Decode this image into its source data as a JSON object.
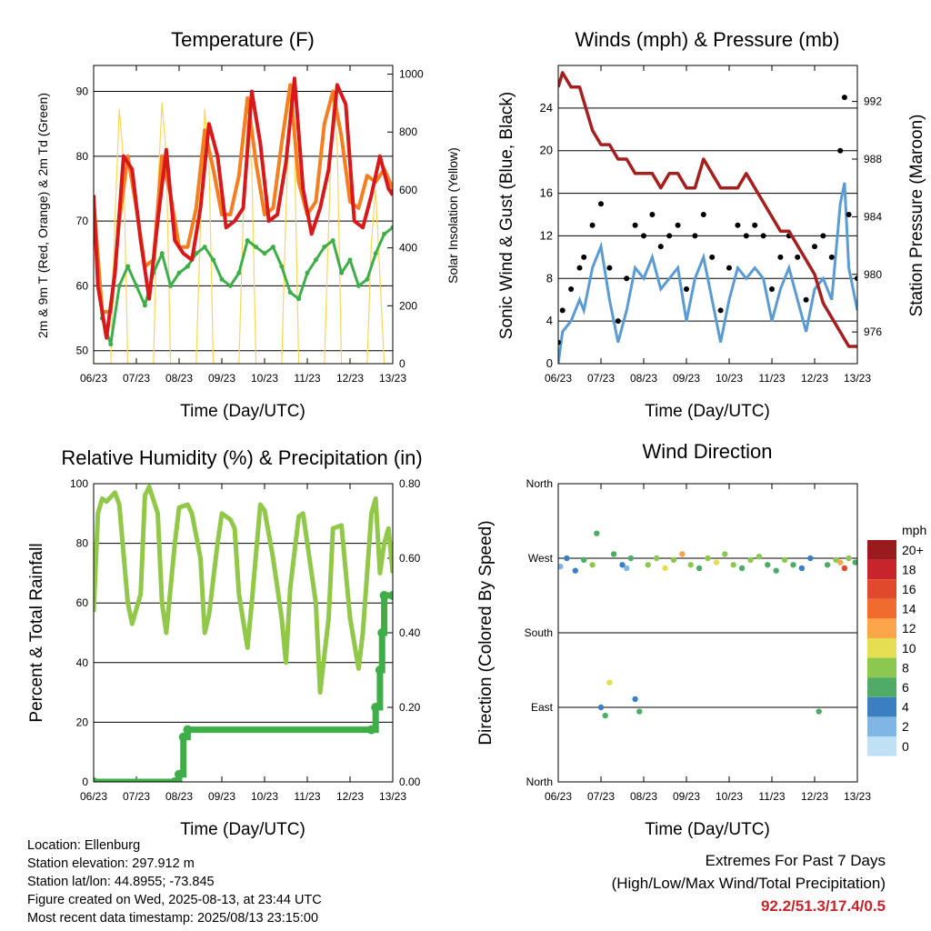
{
  "colors": {
    "t2m": "#d7191c",
    "t9m": "#f57f20",
    "td": "#3fae49",
    "solar": "#fcd65a",
    "wind": "#5a9bd4",
    "gust": "#000000",
    "pressure": "#a51f1f",
    "rh": "#92c84a",
    "precip": "#3fae49"
  },
  "chart_data": [
    {
      "type": "line",
      "title": "Temperature (F)",
      "xlabel": "Time (Day/UTC)",
      "ylabel": "2m & 9m T (Red, Orange) & 2m Td (Green)",
      "y2label": "Solar Insolation (Yellow)",
      "x_ticks": [
        "06/23",
        "07/23",
        "08/23",
        "09/23",
        "10/23",
        "11/23",
        "12/23",
        "13/23"
      ],
      "ylim": [
        48,
        94
      ],
      "y_ticks": [
        50,
        60,
        70,
        80,
        90
      ],
      "y2lim": [
        0,
        1030
      ],
      "y2_ticks": [
        0,
        200,
        400,
        600,
        800,
        1000
      ],
      "series": [
        {
          "name": "2m T",
          "color": "#d7191c",
          "x": [
            6.0,
            6.1,
            6.3,
            6.5,
            6.7,
            6.9,
            7.1,
            7.3,
            7.5,
            7.7,
            7.9,
            8.1,
            8.3,
            8.5,
            8.7,
            8.9,
            9.1,
            9.3,
            9.5,
            9.7,
            9.9,
            10.1,
            10.3,
            10.5,
            10.7,
            10.9,
            11.1,
            11.3,
            11.5,
            11.7,
            11.9,
            12.1,
            12.3,
            12.5,
            12.7,
            12.9,
            13.0
          ],
          "values": [
            74,
            60,
            52,
            62,
            80,
            78,
            67,
            58,
            70,
            81,
            67,
            65,
            64,
            72,
            85,
            80,
            69,
            70,
            72,
            90,
            82,
            70,
            71,
            79,
            92,
            75,
            68,
            72,
            78,
            91,
            88,
            70,
            69,
            74,
            80,
            75,
            74
          ]
        },
        {
          "name": "9m T",
          "color": "#f57f20",
          "x": [
            6.0,
            6.2,
            6.4,
            6.6,
            6.8,
            7.0,
            7.2,
            7.4,
            7.6,
            7.8,
            8.0,
            8.2,
            8.4,
            8.6,
            8.8,
            9.0,
            9.2,
            9.4,
            9.6,
            9.8,
            10.0,
            10.2,
            10.4,
            10.6,
            10.8,
            11.0,
            11.2,
            11.4,
            11.6,
            11.8,
            12.0,
            12.2,
            12.4,
            12.6,
            12.8,
            13.0
          ],
          "values": [
            73,
            56,
            56,
            70,
            80,
            72,
            63,
            64,
            80,
            74,
            66,
            66,
            72,
            84,
            78,
            71,
            71,
            77,
            89,
            79,
            71,
            72,
            82,
            91,
            76,
            71,
            73,
            85,
            90,
            83,
            73,
            72,
            77,
            76,
            78,
            75
          ]
        },
        {
          "name": "2m Td",
          "color": "#3fae49",
          "x": [
            6.0,
            6.2,
            6.4,
            6.6,
            6.8,
            7.0,
            7.2,
            7.4,
            7.6,
            7.8,
            8.0,
            8.2,
            8.4,
            8.6,
            8.8,
            9.0,
            9.2,
            9.4,
            9.6,
            9.8,
            10.0,
            10.2,
            10.4,
            10.6,
            10.8,
            11.0,
            11.2,
            11.4,
            11.6,
            11.8,
            12.0,
            12.2,
            12.4,
            12.6,
            12.8,
            13.0
          ],
          "values": [
            72,
            55,
            51,
            60,
            63,
            60,
            57,
            62,
            65,
            60,
            62,
            63,
            65,
            66,
            64,
            61,
            60,
            62,
            67,
            66,
            65,
            66,
            63,
            59,
            58,
            62,
            64,
            66,
            67,
            62,
            64,
            60,
            61,
            65,
            68,
            69
          ]
        },
        {
          "name": "Solar",
          "color": "#fcd65a",
          "axis": "right",
          "x": [
            6.0,
            6.4,
            6.5,
            6.6,
            6.7,
            6.8,
            7.4,
            7.5,
            7.6,
            7.7,
            7.8,
            8.4,
            8.5,
            8.6,
            8.7,
            8.8,
            9.4,
            9.5,
            9.6,
            9.7,
            9.8,
            10.4,
            10.5,
            10.6,
            10.7,
            10.8,
            11.4,
            11.5,
            11.6,
            11.7,
            11.8,
            12.4,
            12.5,
            12.6,
            12.7,
            12.8,
            13.0
          ],
          "values": [
            0,
            0,
            500,
            880,
            700,
            0,
            0,
            600,
            900,
            720,
            0,
            0,
            480,
            880,
            700,
            0,
            0,
            500,
            850,
            680,
            0,
            0,
            520,
            960,
            740,
            0,
            0,
            480,
            920,
            760,
            0,
            0,
            420,
            600,
            300,
            0,
            0
          ]
        }
      ]
    },
    {
      "type": "line",
      "title": "Winds (mph) & Pressure (mb)",
      "xlabel": "Time (Day/UTC)",
      "ylabel": "Sonic Wind & Gust (Blue, Black)",
      "y2label": "Station Pressure (Maroon)",
      "x_ticks": [
        "06/23",
        "07/23",
        "08/23",
        "09/23",
        "10/23",
        "11/23",
        "12/23",
        "13/23"
      ],
      "ylim": [
        0,
        28
      ],
      "y_ticks": [
        0,
        4,
        8,
        12,
        16,
        20,
        24
      ],
      "y2lim": [
        973.8,
        994.5
      ],
      "y2_ticks": [
        976,
        980,
        984,
        988,
        992
      ],
      "series": [
        {
          "name": "Wind",
          "color": "#5a9bd4",
          "x": [
            6.0,
            6.1,
            6.3,
            6.5,
            6.6,
            6.8,
            7.0,
            7.2,
            7.4,
            7.6,
            7.8,
            8.0,
            8.2,
            8.4,
            8.6,
            8.8,
            9.0,
            9.2,
            9.4,
            9.6,
            9.8,
            10.0,
            10.2,
            10.4,
            10.6,
            10.8,
            11.0,
            11.2,
            11.4,
            11.6,
            11.8,
            12.0,
            12.2,
            12.4,
            12.6,
            12.7,
            12.8,
            13.0
          ],
          "values": [
            0,
            3,
            4,
            6,
            5,
            9,
            11,
            6,
            2,
            5,
            9,
            8,
            10,
            7,
            8,
            9,
            4,
            8,
            10,
            6,
            2,
            6,
            9,
            8,
            9,
            8,
            4,
            7,
            9,
            6,
            3,
            7,
            8,
            6,
            15,
            17,
            9,
            5
          ]
        },
        {
          "name": "Gust",
          "color": "#000000",
          "x": [
            6.0,
            6.1,
            6.3,
            6.5,
            6.6,
            6.8,
            7.0,
            7.2,
            7.4,
            7.6,
            7.8,
            8.0,
            8.2,
            8.4,
            8.6,
            8.8,
            9.0,
            9.2,
            9.4,
            9.6,
            9.8,
            10.0,
            10.2,
            10.4,
            10.6,
            10.8,
            11.0,
            11.2,
            11.4,
            11.6,
            11.8,
            12.0,
            12.2,
            12.4,
            12.6,
            12.7,
            12.8,
            13.0
          ],
          "values": [
            2,
            5,
            7,
            9,
            10,
            13,
            15,
            9,
            4,
            8,
            13,
            12,
            14,
            11,
            12,
            13,
            7,
            12,
            14,
            10,
            5,
            9,
            13,
            12,
            13,
            12,
            7,
            10,
            12,
            10,
            6,
            11,
            12,
            10,
            20,
            25,
            14,
            8
          ]
        },
        {
          "name": "Pressure",
          "color": "#a51f1f",
          "axis": "right",
          "x": [
            6.0,
            6.1,
            6.3,
            6.5,
            6.6,
            6.8,
            7.0,
            7.2,
            7.4,
            7.6,
            7.8,
            8.0,
            8.2,
            8.4,
            8.6,
            8.8,
            9.0,
            9.2,
            9.4,
            9.6,
            9.8,
            10.0,
            10.2,
            10.4,
            10.6,
            10.8,
            11.0,
            11.2,
            11.4,
            11.6,
            11.8,
            12.0,
            12.2,
            12.4,
            12.6,
            12.8,
            13.0
          ],
          "values": [
            993,
            994,
            993,
            993,
            992,
            990,
            989,
            989,
            988,
            988,
            987,
            987,
            987,
            986,
            987,
            987,
            986,
            986,
            988,
            987,
            986,
            986,
            986,
            987,
            986,
            985,
            984,
            983,
            983,
            982,
            981,
            980,
            978,
            977,
            976,
            975,
            975
          ]
        }
      ]
    },
    {
      "type": "line",
      "title": "Relative Humidity (%) & Precipitation (in)",
      "xlabel": "Time (Day/UTC)",
      "ylabel": "Percent & Total Rainfall",
      "x_ticks": [
        "06/23",
        "07/23",
        "08/23",
        "09/23",
        "10/23",
        "11/23",
        "12/23",
        "13/23"
      ],
      "ylim": [
        0,
        100
      ],
      "y_ticks": [
        0,
        20,
        40,
        60,
        80,
        100
      ],
      "y2lim": [
        0,
        0.8
      ],
      "y2_ticks": [
        "0.00",
        "0.20",
        "0.40",
        "0.60",
        "0.80"
      ],
      "series": [
        {
          "name": "RH",
          "color": "#92c84a",
          "x": [
            6.0,
            6.1,
            6.2,
            6.3,
            6.5,
            6.6,
            6.8,
            6.9,
            7.1,
            7.2,
            7.3,
            7.5,
            7.6,
            7.7,
            7.9,
            8.0,
            8.2,
            8.3,
            8.5,
            8.6,
            8.7,
            8.9,
            9.0,
            9.2,
            9.3,
            9.4,
            9.6,
            9.7,
            9.9,
            10.0,
            10.2,
            10.4,
            10.5,
            10.6,
            10.8,
            10.9,
            11.0,
            11.2,
            11.3,
            11.5,
            11.6,
            11.8,
            12.0,
            12.2,
            12.3,
            12.4,
            12.5,
            12.6,
            12.7,
            12.8,
            12.9,
            13.0
          ],
          "values": [
            57,
            90,
            95,
            94,
            97,
            93,
            60,
            53,
            63,
            96,
            99,
            90,
            60,
            50,
            80,
            92,
            93,
            90,
            75,
            50,
            56,
            80,
            90,
            88,
            85,
            63,
            45,
            60,
            93,
            91,
            75,
            55,
            40,
            65,
            89,
            90,
            80,
            60,
            30,
            55,
            85,
            86,
            55,
            38,
            50,
            70,
            90,
            95,
            70,
            80,
            85,
            70
          ]
        },
        {
          "name": "Precipitation",
          "color": "#3fae49",
          "axis": "right",
          "x": [
            6.0,
            7.9,
            8.0,
            8.1,
            8.2,
            12.5,
            12.6,
            12.7,
            12.75,
            12.8,
            13.0
          ],
          "values": [
            0,
            0,
            0.02,
            0.12,
            0.14,
            0.14,
            0.2,
            0.3,
            0.4,
            0.5,
            0.5
          ]
        }
      ]
    },
    {
      "type": "scatter",
      "title": "Wind Direction",
      "xlabel": "Time (Day/UTC)",
      "ylabel": "Direction (Colored By Speed)",
      "x_ticks": [
        "06/23",
        "07/23",
        "08/23",
        "09/23",
        "10/23",
        "11/23",
        "12/23",
        "13/23"
      ],
      "ylim": [
        0,
        360
      ],
      "y_ticks": [
        "North",
        "East",
        "South",
        "West",
        "North"
      ],
      "legend_title": "mph",
      "legend_labels": [
        "20+",
        "18",
        "16",
        "14",
        "12",
        "10",
        "8",
        "6",
        "4",
        "2",
        "0"
      ],
      "legend_colors": [
        "#9a1b1e",
        "#c8242b",
        "#e04a2b",
        "#f06b2e",
        "#fba64a",
        "#e6de52",
        "#8cc751",
        "#4fac66",
        "#3a7fc2",
        "#7fb6e3",
        "#bfe0f5"
      ],
      "series": [
        {
          "name": "Direction",
          "x": [
            6.05,
            6.2,
            6.4,
            6.6,
            6.8,
            6.9,
            7.0,
            7.1,
            7.2,
            7.3,
            7.5,
            7.6,
            7.7,
            7.8,
            7.9,
            8.1,
            8.3,
            8.5,
            8.7,
            8.9,
            9.1,
            9.3,
            9.5,
            9.7,
            9.9,
            10.1,
            10.3,
            10.5,
            10.7,
            10.9,
            11.1,
            11.3,
            11.5,
            11.7,
            11.9,
            12.1,
            12.3,
            12.5,
            12.6,
            12.7,
            12.8,
            12.95
          ],
          "y": [
            260,
            270,
            255,
            268,
            262,
            300,
            90,
            80,
            120,
            275,
            262,
            258,
            270,
            100,
            85,
            262,
            270,
            258,
            268,
            275,
            262,
            258,
            270,
            265,
            275,
            262,
            258,
            268,
            272,
            262,
            255,
            268,
            262,
            258,
            270,
            85,
            262,
            268,
            265,
            258,
            270,
            265
          ],
          "speed": [
            2,
            4,
            4,
            6,
            8,
            6,
            4,
            6,
            10,
            6,
            4,
            2,
            6,
            4,
            6,
            8,
            8,
            10,
            8,
            12,
            8,
            6,
            8,
            10,
            8,
            8,
            6,
            8,
            8,
            6,
            6,
            8,
            6,
            4,
            4,
            6,
            6,
            8,
            12,
            16,
            8,
            6
          ]
        }
      ]
    }
  ],
  "info": {
    "location": "Location: Ellenburg",
    "elevation": "Station elevation: 297.912 m",
    "latlon": "Station lat/lon: 44.8955; -73.845",
    "created": "Figure created on Wed, 2025-08-13, at 23:44 UTC",
    "timestamp": "Most recent data timestamp: 2025/08/13 23:15:00"
  },
  "extremes": {
    "line1": "Extremes For Past 7 Days",
    "line2": "(High/Low/Max Wind/Total Precipitation)",
    "value": "92.2/51.3/17.4/0.5"
  }
}
